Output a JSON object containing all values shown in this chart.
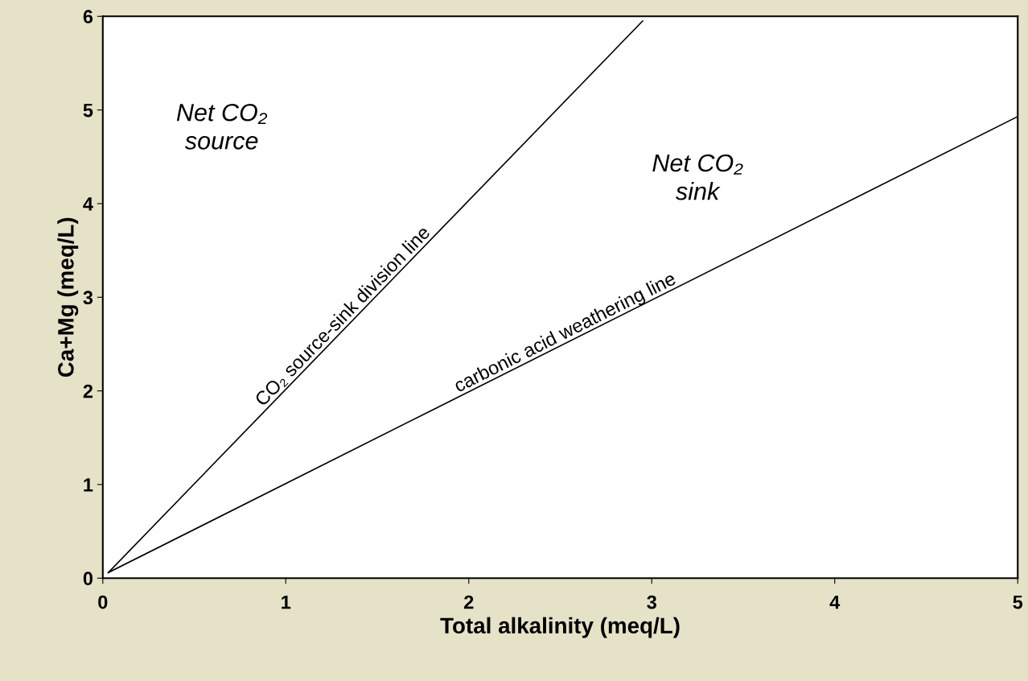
{
  "chart_data": {
    "type": "line",
    "xlabel": "Total alkalinity (meq/L)",
    "ylabel": "Ca+Mg (meq/L)",
    "series": [
      {
        "color": "#000000",
        "x": [
          0.03,
          2.95
        ],
        "values": [
          0.06,
          5.95
        ]
      },
      {
        "color": "#000000",
        "x": [
          0.03,
          5.0
        ],
        "values": [
          0.06,
          4.93
        ]
      }
    ],
    "xlim": [
      0,
      5
    ],
    "ylim": [
      0,
      6
    ],
    "xticks": [
      0,
      1,
      2,
      3,
      4,
      5
    ],
    "yticks": [
      0,
      1,
      2,
      3,
      4,
      5,
      6
    ],
    "grid": false,
    "legend": false,
    "marker": "none",
    "line_style": "solid",
    "annotations": [
      "Net CO₂\nsource",
      "Net CO₂\nsink",
      "CO₂ source-sink division line",
      "carbonic acid weathering line"
    ]
  }
}
